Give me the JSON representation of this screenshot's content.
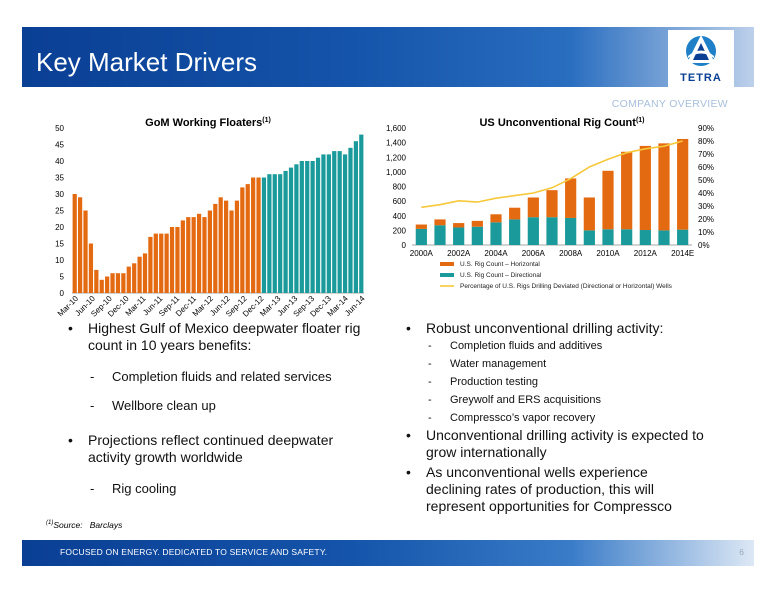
{
  "header": {
    "title": "Key Market Drivers",
    "section": "COMPANY OVERVIEW"
  },
  "logo": {
    "text": "TETRA",
    "icon": "tetra-logo-icon"
  },
  "chart_data": [
    {
      "type": "bar",
      "title": "GoM Working Floaters",
      "title_sup": "(1)",
      "ylim": [
        0,
        50
      ],
      "yticks": [
        0,
        5,
        10,
        15,
        20,
        25,
        30,
        35,
        40,
        45,
        50
      ],
      "xtick_labels": [
        "Mar-10",
        "Jun-10",
        "Sep-10",
        "Dec-10",
        "Mar-11",
        "Jun-11",
        "Sep-11",
        "Dec-11",
        "Mar-12",
        "Jun-12",
        "Sep-12",
        "Dec-12",
        "Mar-13",
        "Jun-13",
        "Sep-13",
        "Dec-13",
        "Mar-14",
        "Jun-14"
      ],
      "colors": {
        "historical": "#e46a12",
        "projected": "#1a9a9a"
      },
      "historical_values": [
        30,
        29,
        25,
        15,
        7,
        4,
        5,
        6,
        6,
        6,
        8,
        9,
        11,
        12,
        17,
        18,
        18,
        18,
        20,
        20,
        22,
        23,
        23,
        24,
        23,
        25,
        27,
        29,
        28,
        25,
        28,
        32,
        33,
        35,
        35
      ],
      "projected_values": [
        35,
        36,
        36,
        36,
        37,
        38,
        39,
        40,
        40,
        40,
        41,
        42,
        42,
        43,
        43,
        42,
        44,
        46,
        48
      ]
    },
    {
      "type": "bar",
      "title": "US Unconventional Rig Count",
      "title_sup": "(1)",
      "categories": [
        "2000A",
        "2001A",
        "2002A",
        "2003A",
        "2004A",
        "2005A",
        "2006A",
        "2007A",
        "2008A",
        "2009A",
        "2010A",
        "2011A",
        "2012A",
        "2013A",
        "2014E"
      ],
      "xtick_labels": [
        "2000A",
        "2002A",
        "2004A",
        "2006A",
        "2008A",
        "2010A",
        "2012A",
        "2014E"
      ],
      "ylim": [
        0,
        1600
      ],
      "yticks": [
        0,
        200,
        400,
        600,
        800,
        1000,
        1200,
        1400,
        1600
      ],
      "y2lim": [
        0,
        90
      ],
      "y2ticks": [
        "0%",
        "10%",
        "20%",
        "30%",
        "40%",
        "50%",
        "60%",
        "70%",
        "80%",
        "90%"
      ],
      "series": [
        {
          "name": "U.S. Rig Count – Directional",
          "color": "#1a9a9a",
          "values": [
            220,
            270,
            240,
            250,
            310,
            350,
            380,
            380,
            370,
            200,
            215,
            215,
            205,
            200,
            210
          ]
        },
        {
          "name": "U.S. Rig Count – Horizontal",
          "color": "#e46a12",
          "values": [
            60,
            80,
            60,
            80,
            110,
            160,
            270,
            370,
            540,
            450,
            800,
            1060,
            1150,
            1190,
            1240
          ]
        },
        {
          "name": "Percentage of U.S. Rigs Drilling Deviated (Directional or Horizontal) Wells",
          "color": "#f6c83a",
          "axis": "y2",
          "values": [
            29,
            31,
            34,
            33,
            36,
            38,
            40,
            44,
            51,
            60,
            66,
            71,
            74,
            76,
            80
          ]
        }
      ]
    }
  ],
  "bullets_left": [
    {
      "level": 1,
      "text": "Highest Gulf of Mexico deepwater floater rig count in 10 years benefits:"
    },
    {
      "level": 2,
      "text": "Completion fluids and related services"
    },
    {
      "level": 2,
      "text": "Wellbore clean up"
    },
    {
      "level": 1,
      "text": "Projections reflect continued deepwater activity growth worldwide"
    },
    {
      "level": 2,
      "text": "Rig cooling"
    }
  ],
  "bullets_right": [
    {
      "level": 1,
      "text": "Robust unconventional drilling activity:"
    },
    {
      "level": 2,
      "text": "Completion fluids and additives"
    },
    {
      "level": 2,
      "text": "Water management"
    },
    {
      "level": 2,
      "text": "Production testing"
    },
    {
      "level": 2,
      "text": "Greywolf and ERS acquisitions"
    },
    {
      "level": 2,
      "text": "Compressco’s vapor recovery"
    },
    {
      "level": 1,
      "text": "Unconventional drilling activity is expected to grow internationally"
    },
    {
      "level": 1,
      "text": "As unconventional wells experience declining rates of production, this will represent opportunities for Compressco"
    }
  ],
  "footnote": {
    "marker": "(1)",
    "label": "Source:",
    "text": "Barclays"
  },
  "footer": {
    "tagline": "FOCUSED ON ENERGY. DEDICATED TO SERVICE AND SAFETY.",
    "page": "6"
  }
}
